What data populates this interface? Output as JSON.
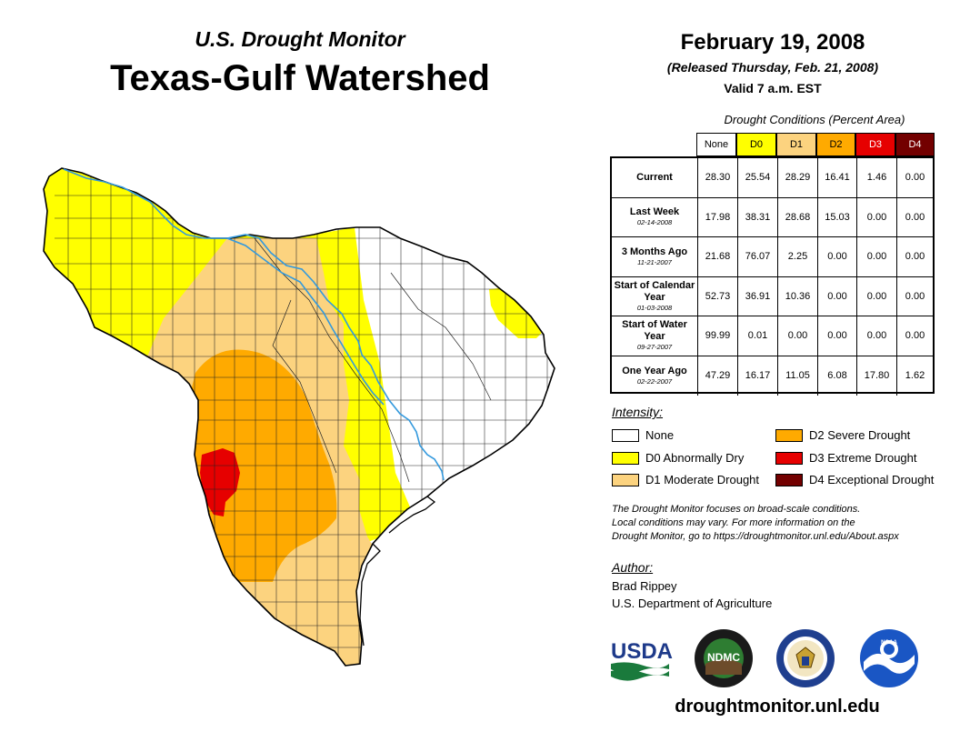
{
  "header": {
    "subtitle": "U.S. Drought Monitor",
    "title": "Texas-Gulf Watershed",
    "date": "February 19, 2008",
    "released": "(Released Thursday, Feb. 21, 2008)",
    "valid": "Valid 7 a.m. EST"
  },
  "table": {
    "caption": "Drought Conditions (Percent Area)",
    "columns": [
      {
        "label": "None",
        "color": "#ffffff",
        "text_color": "#000000"
      },
      {
        "label": "D0",
        "color": "#ffff00",
        "text_color": "#000000"
      },
      {
        "label": "D1",
        "color": "#fcd37f",
        "text_color": "#000000"
      },
      {
        "label": "D2",
        "color": "#ffaa00",
        "text_color": "#000000"
      },
      {
        "label": "D3",
        "color": "#e60000",
        "text_color": "#ffffff"
      },
      {
        "label": "D4",
        "color": "#730000",
        "text_color": "#ffffff"
      }
    ],
    "rows": [
      {
        "label": "Current",
        "date": "",
        "values": [
          "28.30",
          "25.54",
          "28.29",
          "16.41",
          "1.46",
          "0.00"
        ]
      },
      {
        "label": "Last Week",
        "date": "02-14-2008",
        "values": [
          "17.98",
          "38.31",
          "28.68",
          "15.03",
          "0.00",
          "0.00"
        ]
      },
      {
        "label": "3 Months Ago",
        "date": "11-21-2007",
        "values": [
          "21.68",
          "76.07",
          "2.25",
          "0.00",
          "0.00",
          "0.00"
        ]
      },
      {
        "label": "Start of Calendar Year",
        "date": "01-03-2008",
        "values": [
          "52.73",
          "36.91",
          "10.36",
          "0.00",
          "0.00",
          "0.00"
        ]
      },
      {
        "label": "Start of Water Year",
        "date": "09-27-2007",
        "values": [
          "99.99",
          "0.01",
          "0.00",
          "0.00",
          "0.00",
          "0.00"
        ]
      },
      {
        "label": "One Year Ago",
        "date": "02-22-2007",
        "values": [
          "47.29",
          "16.17",
          "11.05",
          "6.08",
          "17.80",
          "1.62"
        ]
      }
    ]
  },
  "legend": {
    "title": "Intensity:",
    "items": [
      {
        "label": "None",
        "color": "#ffffff"
      },
      {
        "label": "D0 Abnormally Dry",
        "color": "#ffff00"
      },
      {
        "label": "D1 Moderate Drought",
        "color": "#fcd37f"
      },
      {
        "label": "D2 Severe Drought",
        "color": "#ffaa00"
      },
      {
        "label": "D3 Extreme Drought",
        "color": "#e60000"
      },
      {
        "label": "D4 Exceptional Drought",
        "color": "#730000"
      }
    ]
  },
  "note": {
    "line1": "The Drought Monitor focuses on broad-scale conditions.",
    "line2": "Local conditions may vary. For more information on the",
    "line3": "Drought Monitor, go to https://droughtmonitor.unl.edu/About.aspx"
  },
  "author": {
    "label": "Author:",
    "name": "Brad Rippey",
    "org": "U.S. Department of Agriculture"
  },
  "logos": {
    "usda": "USDA",
    "ndmc": "NDMC",
    "noaa": "NOAA"
  },
  "website": "droughtmonitor.unl.edu",
  "colors": {
    "none": "#ffffff",
    "d0": "#ffff00",
    "d1": "#fcd37f",
    "d2": "#ffaa00",
    "d3": "#e60000",
    "d4": "#730000",
    "river": "#3399dd",
    "ocean": "#ffffff"
  }
}
